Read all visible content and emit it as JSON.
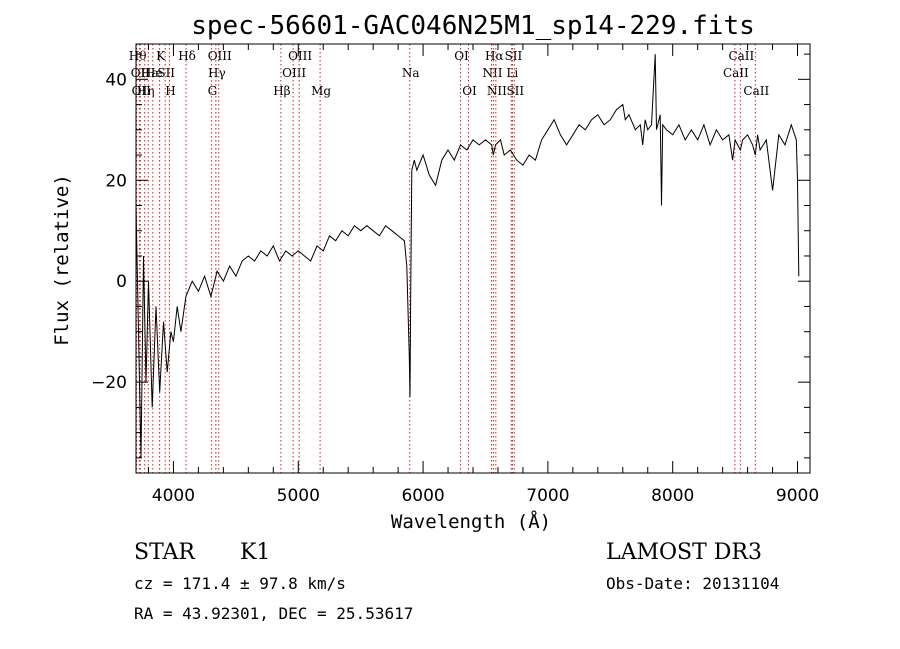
{
  "chart_data": {
    "type": "line",
    "title": "spec-56601-GAC046N25M1_sp14-229.fits",
    "xlabel": "Wavelength (Å)",
    "ylabel": "Flux (relative)",
    "xlim": [
      3700,
      9100
    ],
    "ylim": [
      -38,
      47
    ],
    "x_ticks": [
      4000,
      5000,
      6000,
      7000,
      8000,
      9000
    ],
    "x_tick_labels": [
      "4000",
      "5000",
      "6000",
      "7000",
      "8000",
      "9000"
    ],
    "y_ticks": [
      -20,
      0,
      20,
      40
    ],
    "y_tick_labels": [
      "−20",
      "0",
      "20",
      "40"
    ],
    "line_color": "#000000",
    "marker_color": "#cc2222",
    "series": [
      {
        "x": [
          3700,
          3720,
          3740,
          3760,
          3780,
          3800,
          3830,
          3860,
          3890,
          3920,
          3950,
          3980,
          4000,
          4030,
          4060,
          4100,
          4150,
          4200,
          4250,
          4300,
          4350,
          4400,
          4450,
          4500,
          4550,
          4600,
          4650,
          4700,
          4750,
          4800,
          4850,
          4900,
          4950,
          5000,
          5050,
          5100,
          5150,
          5200,
          5250,
          5300,
          5350,
          5400,
          5450,
          5500,
          5550,
          5600,
          5650,
          5700,
          5750,
          5800,
          5850,
          5870,
          5890,
          5895,
          5900,
          5910,
          5930,
          5950,
          6000,
          6050,
          6100,
          6150,
          6200,
          6250,
          6300,
          6350,
          6400,
          6450,
          6500,
          6550,
          6563,
          6580,
          6620,
          6650,
          6700,
          6750,
          6800,
          6850,
          6900,
          6950,
          7000,
          7050,
          7100,
          7150,
          7200,
          7250,
          7300,
          7350,
          7400,
          7450,
          7500,
          7550,
          7600,
          7620,
          7650,
          7700,
          7740,
          7760,
          7780,
          7800,
          7830,
          7860,
          7870,
          7900,
          7910,
          7920,
          7950,
          8000,
          8050,
          8100,
          8150,
          8200,
          8250,
          8300,
          8350,
          8400,
          8450,
          8480,
          8500,
          8520,
          8542,
          8560,
          8600,
          8640,
          8662,
          8680,
          8700,
          8750,
          8800,
          8850,
          8900,
          8950,
          8990,
          9000,
          9010
        ],
        "y": [
          15,
          -10,
          -35,
          5,
          -20,
          0,
          -25,
          -5,
          -22,
          -8,
          -18,
          -10,
          -12,
          -5,
          -10,
          -3,
          0,
          -2,
          1,
          -3,
          2,
          0,
          3,
          1,
          4,
          5,
          4,
          6,
          5,
          7,
          4,
          6,
          5,
          6,
          5,
          4,
          7,
          6,
          9,
          8,
          10,
          9,
          11,
          10,
          11,
          10,
          9,
          11,
          10,
          9,
          8,
          3,
          -15,
          -23,
          -5,
          22,
          24,
          22,
          25,
          21,
          19,
          24,
          26,
          24,
          27,
          26,
          28,
          27,
          28,
          27,
          25,
          27,
          28,
          25,
          26,
          24,
          23,
          25,
          24,
          28,
          30,
          32,
          29,
          27,
          29,
          31,
          30,
          32,
          33,
          31,
          32,
          34,
          35,
          32,
          33,
          30,
          31,
          27,
          32,
          30,
          31,
          45,
          30,
          33,
          15,
          31,
          30,
          29,
          31,
          28,
          30,
          28,
          31,
          27,
          30,
          28,
          29,
          24,
          28,
          27,
          26,
          28,
          29,
          27,
          25,
          29,
          26,
          28,
          18,
          29,
          27,
          31,
          28,
          20,
          1
        ]
      }
    ],
    "line_marks": [
      {
        "wl": 3705,
        "label": "Hθ",
        "row": 0
      },
      {
        "wl": 3727,
        "label": "OII",
        "row": 1
      },
      {
        "wl": 3734,
        "label": "OII",
        "row": 2
      },
      {
        "wl": 3770,
        "label": "Hη",
        "row": 2
      },
      {
        "wl": 3798,
        "label": "Hε",
        "row": 1
      },
      {
        "wl": 3835,
        "label": "He",
        "row": 1
      },
      {
        "wl": 3889,
        "label": "K",
        "row": 0
      },
      {
        "wl": 3934,
        "label": "SII",
        "row": 1
      },
      {
        "wl": 3968,
        "label": "H",
        "row": 2
      },
      {
        "wl": 4101,
        "label": "Hδ",
        "row": 0
      },
      {
        "wl": 4304,
        "label": "G",
        "row": 2
      },
      {
        "wl": 4340,
        "label": "Hγ",
        "row": 1
      },
      {
        "wl": 4363,
        "label": "OIII",
        "row": 0
      },
      {
        "wl": 4861,
        "label": "Hβ",
        "row": 2
      },
      {
        "wl": 4959,
        "label": "OIII",
        "row": 1
      },
      {
        "wl": 5007,
        "label": "OIII",
        "row": 0
      },
      {
        "wl": 5175,
        "label": "Mg",
        "row": 2
      },
      {
        "wl": 5893,
        "label": "Na",
        "row": 1
      },
      {
        "wl": 6300,
        "label": "OI",
        "row": 0
      },
      {
        "wl": 6364,
        "label": "OI",
        "row": 2
      },
      {
        "wl": 6548,
        "label": "NII",
        "row": 1
      },
      {
        "wl": 6563,
        "label": "Hα",
        "row": 0
      },
      {
        "wl": 6583,
        "label": "NII",
        "row": 2
      },
      {
        "wl": 6707,
        "label": "Li",
        "row": 1
      },
      {
        "wl": 6716,
        "label": "SII",
        "row": 0
      },
      {
        "wl": 6731,
        "label": "SII",
        "row": 2
      },
      {
        "wl": 8498,
        "label": "CaII",
        "row": 1
      },
      {
        "wl": 8542,
        "label": "CaII",
        "row": 0
      },
      {
        "wl": 8662,
        "label": "CaII",
        "row": 2
      }
    ]
  },
  "info": {
    "class": "STAR",
    "subclass": "K1",
    "survey": "LAMOST DR3",
    "redshift": "cz = 171.4 ± 97.8 km/s",
    "obs_date": "Obs-Date: 20131104",
    "coords": "RA =  43.92301, DEC =  25.53617"
  }
}
